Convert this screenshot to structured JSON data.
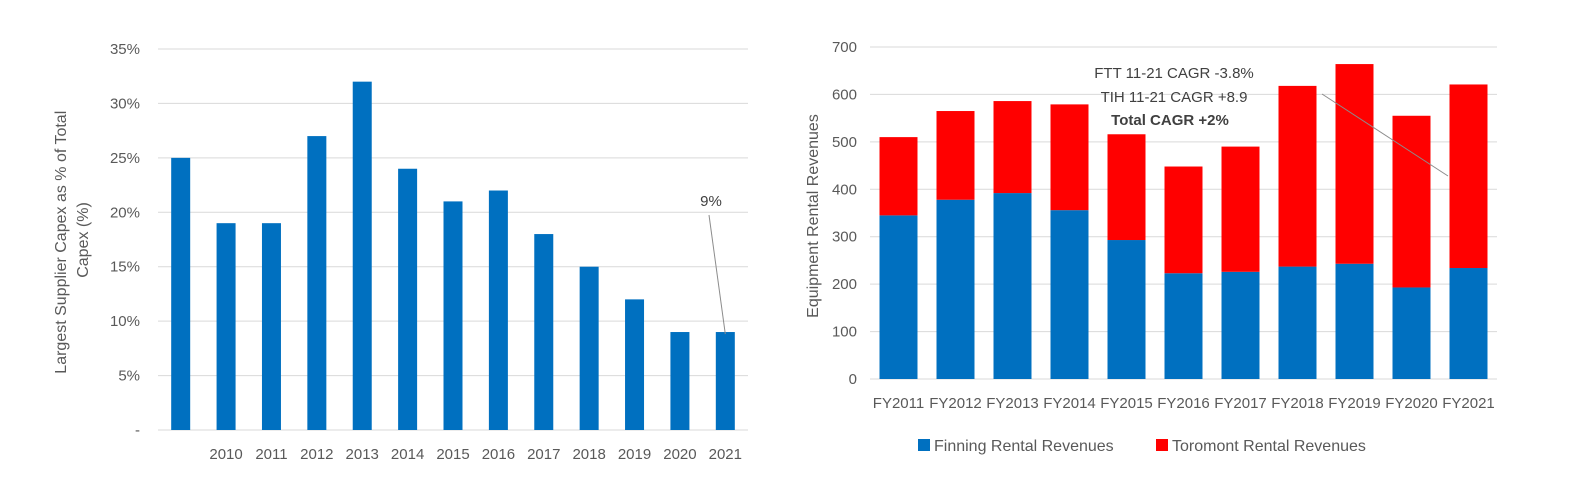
{
  "colors": {
    "blue": "#0070C0",
    "red": "#FF0000",
    "grid": "#D9D9D9",
    "text": "#595959"
  },
  "chart_data": [
    {
      "type": "bar",
      "xlabel": "",
      "ylabel": "Largest Supplier Capex as % of Total Capex (%)",
      "ylabel_lines": [
        "Largest Supplier Capex as % of Total",
        "Capex (%)"
      ],
      "categories": [
        "",
        "2010",
        "2011",
        "2012",
        "2013",
        "2014",
        "2015",
        "2016",
        "2017",
        "2018",
        "2019",
        "2020",
        "2021"
      ],
      "values": [
        25,
        19,
        19,
        27,
        32,
        24,
        21,
        22,
        18,
        15,
        12,
        9,
        9
      ],
      "ylim": [
        0,
        35
      ],
      "y_ticks": [
        "-",
        "5%",
        "10%",
        "15%",
        "20%",
        "25%",
        "30%",
        "35%"
      ],
      "grid": true,
      "annotations": [
        {
          "text": "9%",
          "category": "2021",
          "value": 9
        }
      ]
    },
    {
      "type": "bar",
      "stacked": true,
      "xlabel": "",
      "ylabel": "Equipment Rental Revenues",
      "categories": [
        "FY2011",
        "FY2012",
        "FY2013",
        "FY2014",
        "FY2015",
        "FY2016",
        "FY2017",
        "FY2018",
        "FY2019",
        "FY2020",
        "FY2021"
      ],
      "series": [
        {
          "name": "Finning Rental Revenues",
          "values": [
            345,
            378,
            392,
            356,
            293,
            223,
            226,
            237,
            243,
            193,
            234
          ]
        },
        {
          "name": "Toromont Rental Revenues",
          "values": [
            165,
            187,
            194,
            223,
            223,
            225,
            264,
            381,
            421,
            362,
            387
          ]
        }
      ],
      "ylim": [
        0,
        700
      ],
      "y_ticks": [
        "0",
        "100",
        "200",
        "300",
        "400",
        "500",
        "600",
        "700"
      ],
      "grid": true,
      "legend_position": "bottom",
      "annotations": [
        "FTT 11-21 CAGR -3.8%",
        "TIH 11-21 CAGR +8.9",
        "Total CAGR +2%"
      ]
    }
  ]
}
